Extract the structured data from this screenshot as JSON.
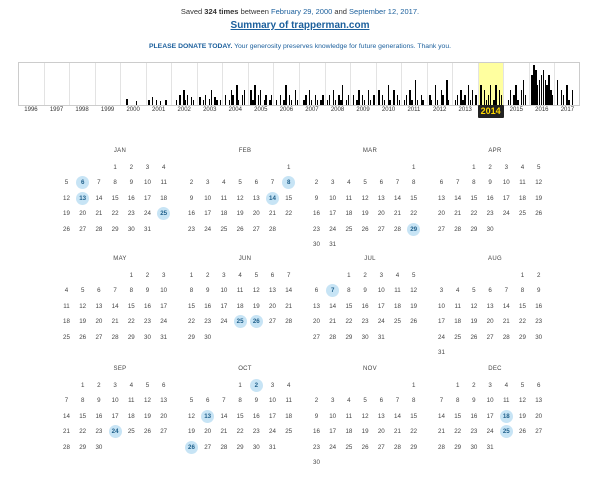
{
  "header": {
    "saved_prefix": "Saved",
    "saved_count": "324 times",
    "between": "between",
    "start_date": "February 29, 2000",
    "and": "and",
    "end_date": "September 12, 2017.",
    "site_link": "Summary of trapperman.com",
    "donate_bold": "PLEASE DONATE TODAY.",
    "donate_text": "Your generosity preserves knowledge for future generations. Thank you."
  },
  "timeline": {
    "years": [
      "1996",
      "1997",
      "1998",
      "1999",
      "2000",
      "2001",
      "2002",
      "2003",
      "2004",
      "2005",
      "2006",
      "2007",
      "2008",
      "2009",
      "2010",
      "2011",
      "2012",
      "2013",
      "2014",
      "2015",
      "2016",
      "2017"
    ],
    "selected_year": "2014",
    "selected_color": "#ffff9f",
    "captures_relative": {
      "2000": [
        0,
        0,
        6,
        0,
        0,
        0,
        0,
        4,
        0,
        0,
        0,
        0
      ],
      "2001": [
        5,
        0,
        8,
        0,
        5,
        0,
        4,
        0,
        0,
        5,
        0,
        0
      ],
      "2002": [
        0,
        5,
        0,
        10,
        0,
        15,
        5,
        10,
        0,
        8,
        5,
        0
      ],
      "2003": [
        8,
        0,
        5,
        10,
        0,
        6,
        15,
        0,
        8,
        5,
        0,
        5
      ],
      "2004": [
        10,
        0,
        5,
        15,
        10,
        0,
        20,
        5,
        0,
        10,
        15,
        0
      ],
      "2005": [
        15,
        5,
        20,
        0,
        10,
        15,
        0,
        5,
        10,
        0,
        5,
        10
      ],
      "2006": [
        5,
        0,
        10,
        0,
        5,
        20,
        0,
        10,
        5,
        0,
        15,
        5
      ],
      "2007": [
        0,
        5,
        10,
        0,
        15,
        5,
        0,
        10,
        5,
        0,
        5,
        10
      ],
      "2008": [
        5,
        10,
        0,
        15,
        5,
        0,
        10,
        5,
        20,
        0,
        5,
        10
      ],
      "2009": [
        10,
        0,
        5,
        15,
        0,
        10,
        5,
        0,
        15,
        5,
        0,
        10
      ],
      "2010": [
        15,
        0,
        10,
        5,
        0,
        20,
        5,
        0,
        15,
        0,
        10,
        5
      ],
      "2011": [
        5,
        10,
        0,
        15,
        5,
        0,
        25,
        5,
        0,
        10,
        5,
        0
      ],
      "2012": [
        10,
        5,
        0,
        20,
        5,
        0,
        15,
        10,
        0,
        25,
        5,
        0
      ],
      "2013": [
        5,
        10,
        0,
        15,
        5,
        10,
        0,
        20,
        5,
        15,
        0,
        10
      ],
      "2014": [
        20,
        0,
        15,
        5,
        10,
        20,
        0,
        5,
        20,
        0,
        15,
        10
      ],
      "2015": [
        0,
        5,
        15,
        0,
        10,
        20,
        5,
        0,
        15,
        25,
        10,
        0
      ],
      "2016": [
        30,
        40,
        35,
        20,
        25,
        30,
        35,
        25,
        20,
        30,
        15,
        10
      ],
      "2017": [
        25,
        0,
        15,
        10,
        0,
        20,
        5,
        0,
        15,
        0,
        0,
        0
      ]
    }
  },
  "calendar": {
    "months": [
      {
        "name": "JAN",
        "first_weekday": 3,
        "days": 31,
        "saved": [
          6,
          13,
          25
        ]
      },
      {
        "name": "FEB",
        "first_weekday": 6,
        "days": 28,
        "saved": [
          8,
          14
        ]
      },
      {
        "name": "MAR",
        "first_weekday": 6,
        "days": 31,
        "saved": [
          29
        ]
      },
      {
        "name": "APR",
        "first_weekday": 2,
        "days": 30,
        "saved": []
      },
      {
        "name": "MAY",
        "first_weekday": 4,
        "days": 31,
        "saved": []
      },
      {
        "name": "JUN",
        "first_weekday": 0,
        "days": 30,
        "saved": [
          25,
          26
        ]
      },
      {
        "name": "JUL",
        "first_weekday": 2,
        "days": 31,
        "saved": [
          7
        ]
      },
      {
        "name": "AUG",
        "first_weekday": 5,
        "days": 31,
        "saved": []
      },
      {
        "name": "SEP",
        "first_weekday": 1,
        "days": 30,
        "saved": [
          24
        ]
      },
      {
        "name": "OCT",
        "first_weekday": 3,
        "days": 31,
        "saved": [
          2,
          13,
          26
        ]
      },
      {
        "name": "NOV",
        "first_weekday": 6,
        "days": 30,
        "saved": []
      },
      {
        "name": "DEC",
        "first_weekday": 1,
        "days": 31,
        "saved": [
          18,
          25
        ]
      }
    ],
    "saved_color": "#c7e4f5"
  }
}
